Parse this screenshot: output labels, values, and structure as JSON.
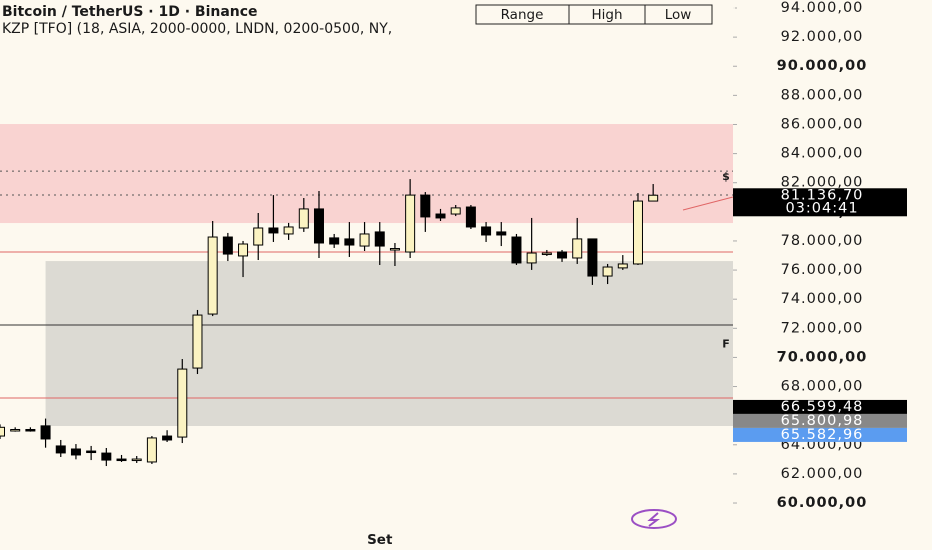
{
  "chart_data": {
    "type": "candlestick",
    "title": "Bitcoin / TetherUS · 1D · Binance",
    "subtitle": "KZP [TFO] (18, ASIA, 2000-0000, LNDN, 0200-0500, NY,",
    "buttons": [
      "Range",
      "High",
      "Low"
    ],
    "categories": [
      null,
      null,
      null,
      null,
      null,
      null,
      null,
      null,
      null,
      null,
      null,
      null,
      null,
      null,
      null,
      null,
      null,
      null,
      null,
      null,
      null,
      null,
      null,
      null,
      null,
      "Set",
      null,
      null,
      null,
      null,
      null,
      null,
      null,
      null,
      null,
      null,
      null,
      null,
      null,
      null,
      null,
      null,
      null,
      null
    ],
    "open": [
      64600,
      65000,
      65050,
      65300,
      63920,
      63710,
      63570,
      63430,
      63020,
      62980,
      62820,
      64600,
      64530,
      69270,
      72980,
      78270,
      76970,
      77720,
      78890,
      78480,
      78890,
      80200,
      78210,
      78140,
      77650,
      78620,
      77450,
      77240,
      81150,
      79850,
      79850,
      80330,
      78960,
      78620,
      78270,
      76490,
      77170,
      77240,
      76830,
      78140,
      75590,
      76150,
      76420,
      80740
    ],
    "high": [
      65400,
      65200,
      65200,
      65800,
      64330,
      64050,
      63920,
      63780,
      63300,
      63230,
      64600,
      65000,
      69890,
      73260,
      79370,
      78550,
      78000,
      79920,
      81150,
      79240,
      80950,
      81430,
      78480,
      79300,
      79300,
      79300,
      77860,
      82250,
      81360,
      80200,
      80470,
      80470,
      79300,
      79300,
      78480,
      79580,
      77380,
      77380,
      79580,
      78140,
      76420,
      77030,
      81290,
      81910
    ],
    "low": [
      64400,
      64900,
      64900,
      63800,
      63160,
      63000,
      62950,
      62540,
      62820,
      62750,
      62680,
      64190,
      64120,
      68860,
      72840,
      76620,
      75520,
      76690,
      77930,
      78070,
      78620,
      76830,
      77520,
      76900,
      77310,
      76350,
      76280,
      76830,
      78620,
      79370,
      79710,
      78820,
      77930,
      77650,
      76350,
      76010,
      76970,
      76560,
      76420,
      74980,
      75040,
      76010,
      76350,
      80740
    ],
    "close": [
      65200,
      65050,
      65000,
      64400,
      63440,
      63300,
      63500,
      62950,
      62980,
      63020,
      64470,
      64330,
      69200,
      72910,
      78270,
      77100,
      77790,
      78890,
      78550,
      78960,
      80200,
      77860,
      77790,
      77720,
      78480,
      77650,
      77480,
      81150,
      79650,
      79580,
      80270,
      78960,
      78410,
      78410,
      76490,
      77170,
      77170,
      76830,
      78140,
      75590,
      76210,
      76420,
      80740,
      81140
    ],
    "up_color": "#fbf3c2",
    "down_color": "#000000",
    "ylim": [
      58490,
      94550
    ],
    "yticks": [
      {
        "value": 60000,
        "label": "60.000,00"
      },
      {
        "value": 62000,
        "label": "62.000,00"
      },
      {
        "value": 64000,
        "label": "64.000,00"
      },
      {
        "value": 66000,
        "label": "66.000,00"
      },
      {
        "value": 68000,
        "label": "68.000,00"
      },
      {
        "value": 70000,
        "label": "70.000,00"
      },
      {
        "value": 72000,
        "label": "72.000,00"
      },
      {
        "value": 74000,
        "label": "74.000,00"
      },
      {
        "value": 76000,
        "label": "76.000,00"
      },
      {
        "value": 78000,
        "label": "78.000,00"
      },
      {
        "value": 80000,
        "label": "80.000,00"
      },
      {
        "value": 82000,
        "label": "82.000,00"
      },
      {
        "value": 84000,
        "label": "84.000,00"
      },
      {
        "value": 86000,
        "label": "86.000,00"
      },
      {
        "value": 88000,
        "label": "88.000,00"
      },
      {
        "value": 90000,
        "label": "90.000,00"
      },
      {
        "value": 92000,
        "label": "92.000,00"
      },
      {
        "value": 94000,
        "label": "94.000,00"
      }
    ],
    "zones": [
      {
        "from": 86030,
        "to": 79230,
        "color": "#f9d3d1",
        "start": 0
      },
      {
        "from": 76620,
        "to": 65290,
        "color": "#dcdad3",
        "start": 3
      }
    ],
    "levels": [
      {
        "value": 77240,
        "color": "#e06666",
        "style": "solid"
      },
      {
        "value": 72230,
        "color": "#333333",
        "style": "solid"
      },
      {
        "value": 67210,
        "color": "#e06666",
        "style": "solid"
      },
      {
        "value": 82800,
        "color": "#555555",
        "style": "dotted"
      },
      {
        "value": 81156,
        "color": "#555555",
        "style": "dotted"
      }
    ],
    "price_labels": [
      {
        "value": 81136.7,
        "label": "81.136,70",
        "color": "#000000"
      },
      {
        "value": 66599.48,
        "label": "66.599,48",
        "color": "#000000"
      },
      {
        "value": 65800.98,
        "label": "65.800,98",
        "color": "#888888"
      },
      {
        "value": 65582.96,
        "label": "65.582,96",
        "color": "#5b9cf0"
      }
    ],
    "countdown": "03:04:41",
    "annotations": [
      {
        "text": "$",
        "value": 82400
      },
      {
        "text": "F",
        "value": 70900
      }
    ]
  }
}
